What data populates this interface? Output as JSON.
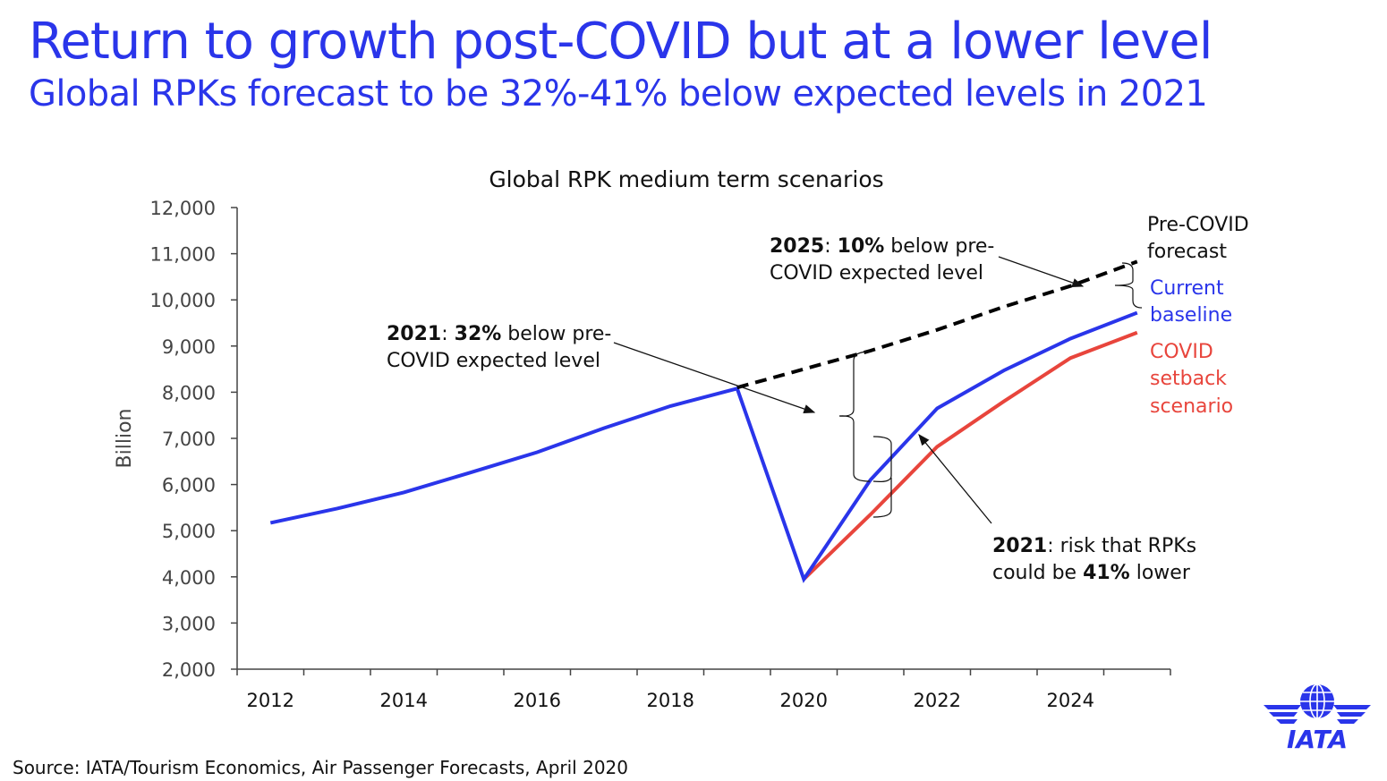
{
  "header": {
    "title": "Return to growth post-COVID but at a lower level",
    "subtitle": "Global RPKs forecast to be 32%-41% below expected levels in 2021"
  },
  "footer": {
    "source": "Source: IATA/Tourism Economics, Air Passenger Forecasts, April 2020"
  },
  "logo": {
    "text": "IATA",
    "color": "#2a35ea"
  },
  "chart_data": {
    "type": "line",
    "title": "Global RPK medium term scenarios",
    "xlabel": "",
    "ylabel": "Billion",
    "xlim": [
      2011.5,
      2025.5
    ],
    "ylim": [
      2000,
      12000
    ],
    "ytick_values": [
      2000,
      3000,
      4000,
      5000,
      6000,
      7000,
      8000,
      9000,
      10000,
      11000,
      12000
    ],
    "ytick_labels": [
      "2,000",
      "3,000",
      "4,000",
      "5,000",
      "6,000",
      "7,000",
      "8,000",
      "9,000",
      "10,000",
      "11,000",
      "12,000"
    ],
    "xtick_values": [
      2012,
      2014,
      2016,
      2018,
      2020,
      2022,
      2024
    ],
    "xtick_labels": [
      "2012",
      "2014",
      "2016",
      "2018",
      "2020",
      "2022",
      "2024"
    ],
    "grid": false,
    "legend": "labels placed directly at line ends",
    "series": [
      {
        "name": "Pre-COVID forecast",
        "color": "#000000",
        "dashed": true,
        "x": [
          2019,
          2020,
          2021,
          2022,
          2023,
          2024,
          2025
        ],
        "y": [
          8100,
          8500,
          8900,
          9350,
          9850,
          10300,
          10830
        ]
      },
      {
        "name": "Current baseline",
        "color": "#2a35ea",
        "dashed": false,
        "x": [
          2012,
          2013,
          2014,
          2015,
          2016,
          2017,
          2018,
          2019,
          2020,
          2021,
          2022,
          2023,
          2024,
          2025
        ],
        "y": [
          5170,
          5480,
          5830,
          6260,
          6700,
          7220,
          7700,
          8080,
          3950,
          6100,
          7650,
          8470,
          9160,
          9720
        ]
      },
      {
        "name": "COVID setback scenario",
        "color": "#e8453c",
        "dashed": false,
        "x": [
          2020,
          2021,
          2022,
          2023,
          2024,
          2025
        ],
        "y": [
          3950,
          5350,
          6820,
          7800,
          8740,
          9290
        ]
      }
    ],
    "annotations": [
      {
        "year": "2025",
        "sep1": ": ",
        "pct": "10%",
        "rest1": " below pre-",
        "line2": "COVID expected level",
        "arrow_to": [
          2025.05,
          10390
        ]
      },
      {
        "year": "2021",
        "sep1": ": ",
        "pct": "32%",
        "rest1": " below pre-",
        "line2": "COVID expected level",
        "arrow_to": [
          2020.45,
          7530
        ]
      },
      {
        "year": "2021",
        "sep1": ": risk that RPKs",
        "line2_pre": "could be ",
        "pct": "41%",
        "line2_post": " lower",
        "arrow_to": [
          2021.4,
          6980
        ]
      }
    ]
  }
}
